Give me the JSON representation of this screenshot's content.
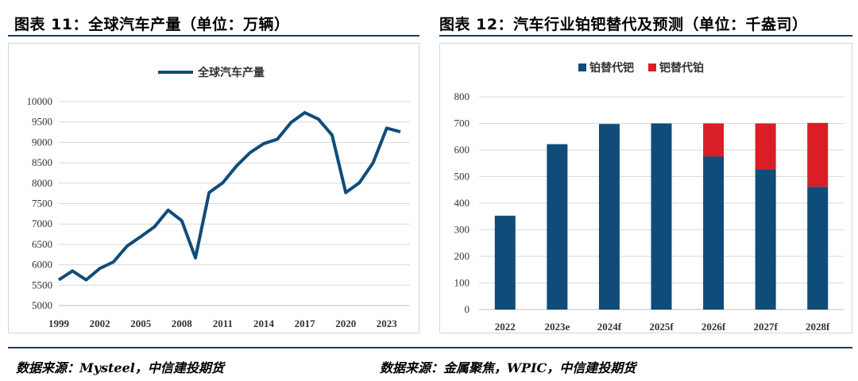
{
  "left": {
    "title": "图表 11：全球汽车产量（单位：万辆）",
    "source": "数据来源：Mysteel，中信建投期货"
  },
  "right": {
    "title": "图表 12：汽车行业铂钯替代及预测（单位：千盎司）",
    "source": "数据来源：金属聚焦，WPIC，中信建投期货"
  },
  "colors": {
    "navy": "#0f4c7a",
    "red": "#d91e26"
  },
  "chart_data": [
    {
      "type": "line",
      "title": "",
      "legend": [
        "全球汽车产量"
      ],
      "legend_position": "top-center",
      "x": [
        1999,
        2000,
        2001,
        2002,
        2003,
        2004,
        2005,
        2006,
        2007,
        2008,
        2009,
        2010,
        2011,
        2012,
        2013,
        2014,
        2015,
        2016,
        2017,
        2018,
        2019,
        2020,
        2021,
        2022,
        2023,
        2024
      ],
      "series": [
        {
          "name": "全球汽车产量",
          "values": [
            5630,
            5850,
            5630,
            5910,
            6070,
            6460,
            6690,
            6930,
            7340,
            7080,
            6170,
            7770,
            8010,
            8420,
            8750,
            8970,
            9080,
            9490,
            9730,
            9570,
            9180,
            7770,
            8010,
            8500,
            9350,
            9260
          ]
        }
      ],
      "x_tick_labels": [
        "1999",
        "2002",
        "2005",
        "2008",
        "2011",
        "2014",
        "2017",
        "2020",
        "2023"
      ],
      "ylim": [
        5000,
        10000
      ],
      "y_ticks": [
        5000,
        5500,
        6000,
        6500,
        7000,
        7500,
        8000,
        8500,
        9000,
        9500,
        10000
      ],
      "grid": true
    },
    {
      "type": "bar",
      "stacked": true,
      "title": "",
      "legend": [
        "铂替代钯",
        "钯替代铂"
      ],
      "legend_position": "top-center",
      "categories": [
        "2022",
        "2023e",
        "2024f",
        "2025f",
        "2026f",
        "2027f",
        "2028f"
      ],
      "series": [
        {
          "name": "铂替代钯",
          "values": [
            353,
            622,
            698,
            700,
            576,
            528,
            462
          ]
        },
        {
          "name": "钯替代铂",
          "values": [
            0,
            0,
            0,
            0,
            124,
            172,
            240
          ]
        }
      ],
      "ylim": [
        0,
        800
      ],
      "y_ticks": [
        0,
        100,
        200,
        300,
        400,
        500,
        600,
        700,
        800
      ],
      "grid": true
    }
  ]
}
